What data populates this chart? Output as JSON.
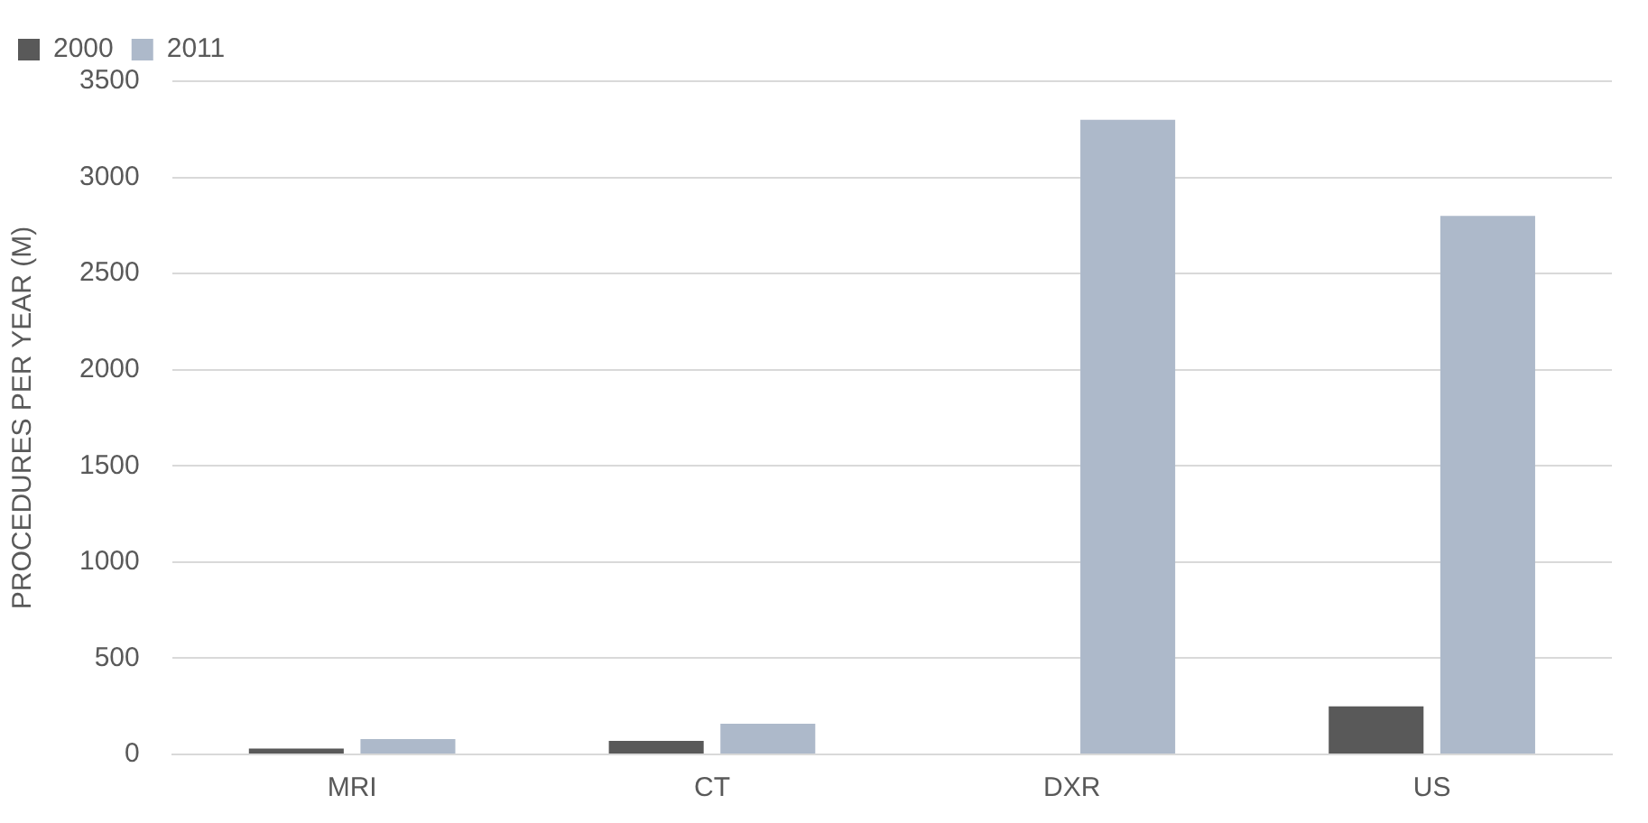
{
  "chart_data": {
    "type": "bar",
    "ylabel": "PROCEDURES PER YEAR (M)",
    "categories": [
      "MRI",
      "CT",
      "DXR",
      "US"
    ],
    "series": [
      {
        "name": "2000",
        "color": "#595959",
        "values": [
          30,
          70,
          null,
          250
        ]
      },
      {
        "name": "2011",
        "color": "#adb9ca",
        "values": [
          80,
          160,
          3300,
          2800
        ]
      }
    ],
    "ylim": [
      0,
      3500
    ],
    "yticks": [
      0,
      500,
      1000,
      1500,
      2000,
      2500,
      3000,
      3500
    ],
    "grid": "y",
    "legend": "top left"
  }
}
